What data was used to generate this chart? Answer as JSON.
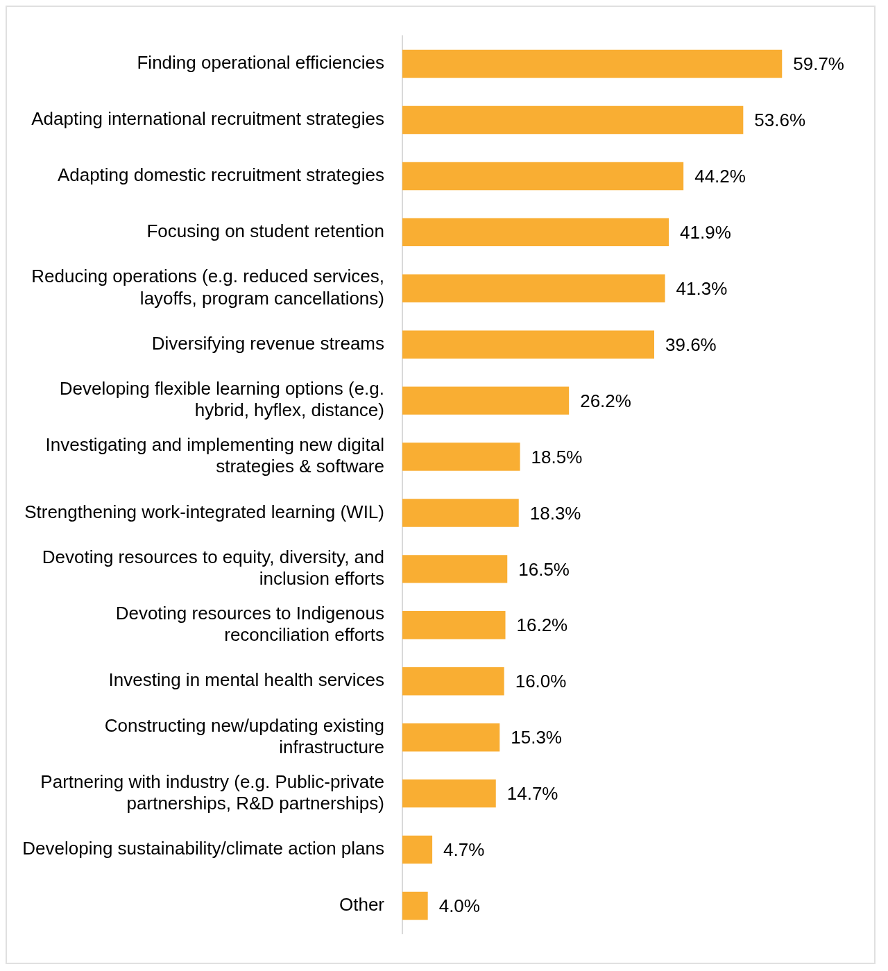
{
  "chart_data": {
    "type": "bar",
    "orientation": "horizontal",
    "categories": [
      "Finding operational efficiencies",
      "Adapting international recruitment strategies",
      "Adapting domestic recruitment strategies",
      "Focusing on student retention",
      "Reducing operations (e.g. reduced services, layoffs, program cancellations)",
      "Diversifying revenue streams",
      "Developing flexible learning options (e.g. hybrid, hyflex, distance)",
      "Investigating and implementing new digital strategies & software",
      "Strengthening work-integrated learning (WIL)",
      "Devoting resources to equity, diversity, and inclusion efforts",
      "Devoting resources to Indigenous reconciliation efforts",
      "Investing in mental health services",
      "Constructing new/updating existing infrastructure",
      "Partnering with industry (e.g. Public-private partnerships, R&D partnerships)",
      "Developing sustainability/climate action plans",
      "Other"
    ],
    "values": [
      59.7,
      53.6,
      44.2,
      41.9,
      41.3,
      39.6,
      26.2,
      18.5,
      18.3,
      16.5,
      16.2,
      16.0,
      15.3,
      14.7,
      4.7,
      4.0
    ],
    "value_labels": [
      "59.7%",
      "53.6%",
      "44.2%",
      "41.9%",
      "41.3%",
      "39.6%",
      "26.2%",
      "18.5%",
      "18.3%",
      "16.5%",
      "16.2%",
      "16.0%",
      "15.3%",
      "14.7%",
      "4.7%",
      "4.0%"
    ],
    "color": "#f9ae33",
    "legend": false
  }
}
